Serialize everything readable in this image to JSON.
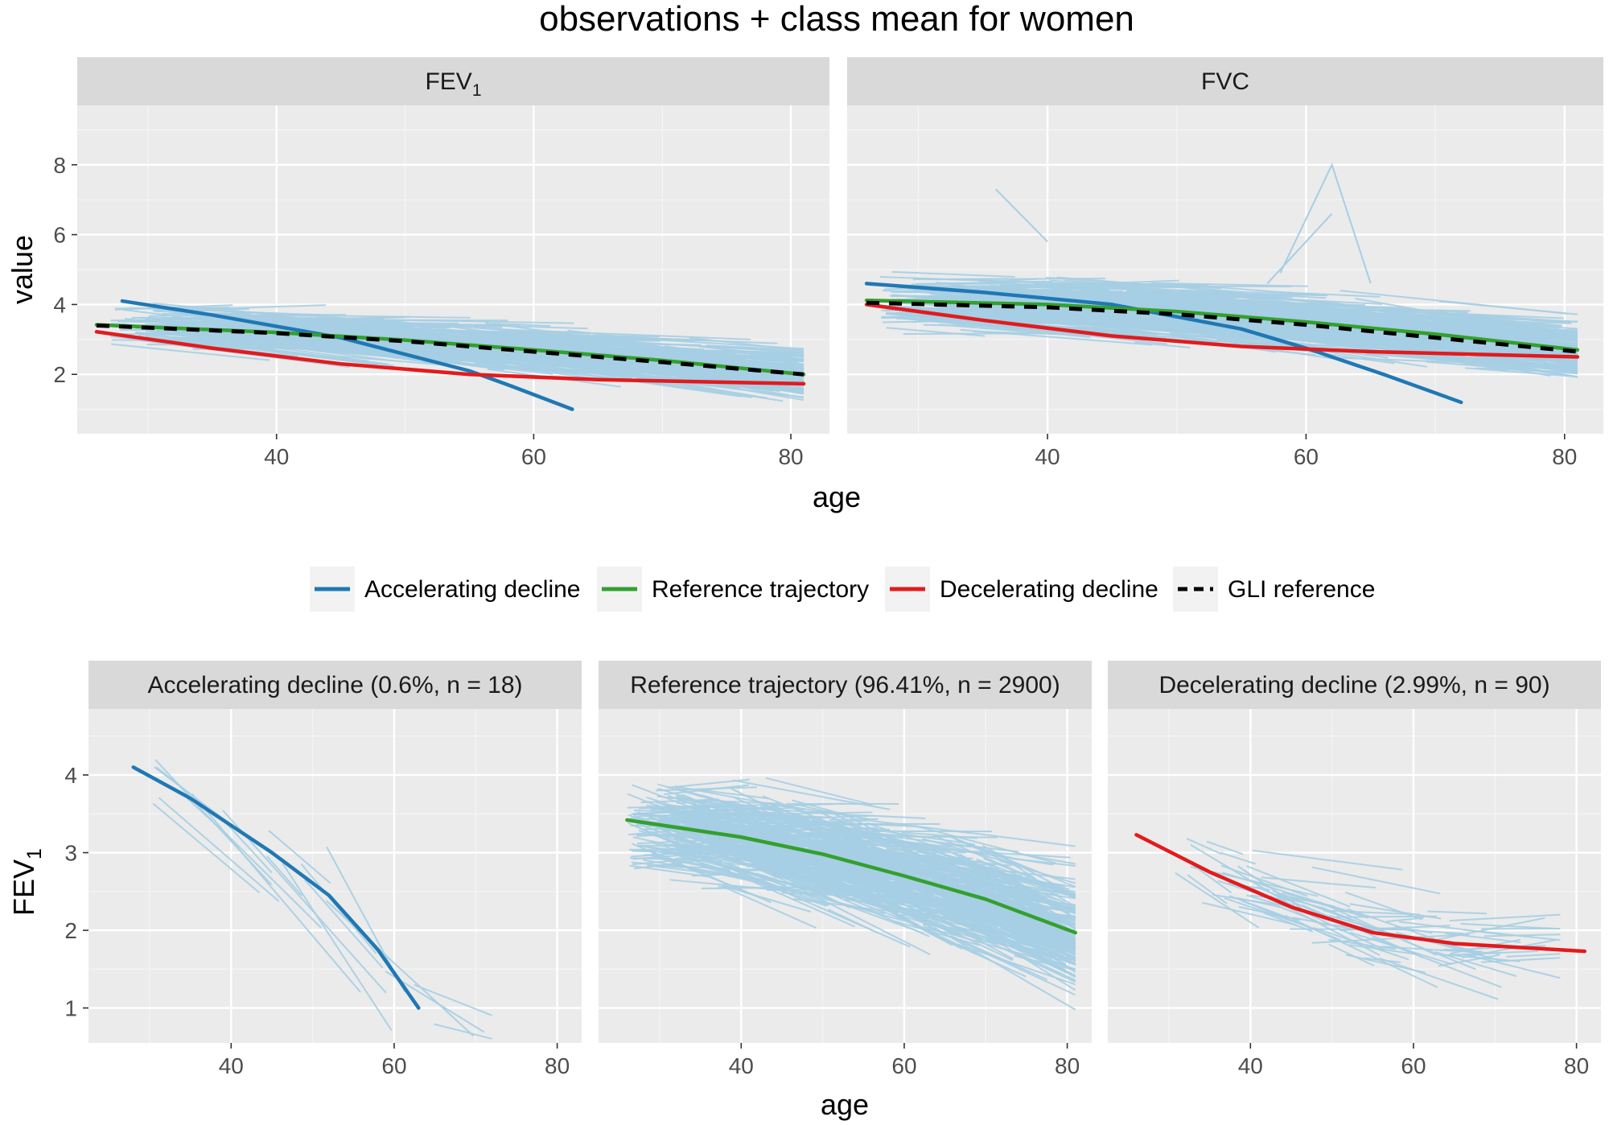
{
  "title": "observations + class mean for women",
  "colors": {
    "accelerating": "#1f78b4",
    "reference": "#33a02c",
    "decelerating": "#e31a1c",
    "gli": "#000000",
    "observations": "#a6cee3",
    "panel_bg": "#ebebeb",
    "strip_bg": "#d9d9d9"
  },
  "legend": {
    "items": [
      {
        "key": "accelerating",
        "label": "Accelerating decline"
      },
      {
        "key": "reference",
        "label": "Reference trajectory"
      },
      {
        "key": "decelerating",
        "label": "Decelerating decline"
      },
      {
        "key": "gli",
        "label": "GLI reference"
      }
    ]
  },
  "top": {
    "ylabel": "value",
    "xlabel": "age",
    "ylim": [
      0.3,
      9.7
    ],
    "yticks": [
      2,
      4,
      6,
      8
    ],
    "xlim": [
      24.5,
      83
    ],
    "xticks": [
      40,
      60,
      80
    ],
    "strips": [
      {
        "label": "FEV",
        "sub": "1"
      },
      {
        "label": "FVC",
        "sub": ""
      }
    ]
  },
  "bottom": {
    "ylabel": "FEV",
    "ylabel_sub": "1",
    "xlabel": "age",
    "ylim": [
      0.55,
      4.85
    ],
    "yticks": [
      1,
      2,
      3,
      4
    ],
    "xlim": [
      22.5,
      83
    ],
    "xticks": [
      40,
      60,
      80
    ],
    "strips": [
      "Accelerating decline (0.6%, n = 18)",
      "Reference trajectory (96.41%, n = 2900)",
      "Decelerating decline (2.99%, n = 90)"
    ]
  },
  "chart_data": [
    {
      "type": "line",
      "title": "observations + class mean for women — FEV1",
      "xlabel": "age",
      "ylabel": "value",
      "series": [
        {
          "name": "Accelerating decline",
          "x": [
            28,
            35,
            45,
            55,
            58,
            63
          ],
          "y": [
            4.1,
            3.7,
            3.05,
            2.1,
            1.7,
            1.0
          ]
        },
        {
          "name": "Reference trajectory",
          "x": [
            26,
            40,
            50,
            60,
            70,
            81
          ],
          "y": [
            3.42,
            3.2,
            2.98,
            2.7,
            2.4,
            2.0
          ]
        },
        {
          "name": "Decelerating decline",
          "x": [
            26,
            35,
            45,
            55,
            65,
            81
          ],
          "y": [
            3.22,
            2.75,
            2.3,
            2.0,
            1.85,
            1.73
          ]
        },
        {
          "name": "GLI reference",
          "x": [
            26,
            40,
            50,
            60,
            70,
            81
          ],
          "y": [
            3.4,
            3.18,
            2.95,
            2.65,
            2.35,
            2.0
          ]
        }
      ]
    },
    {
      "type": "line",
      "title": "observations + class mean for women — FVC",
      "xlabel": "age",
      "ylabel": "value",
      "series": [
        {
          "name": "Accelerating decline",
          "x": [
            26,
            35,
            45,
            55,
            60,
            66,
            72
          ],
          "y": [
            4.6,
            4.35,
            4.0,
            3.3,
            2.75,
            2.0,
            1.2
          ]
        },
        {
          "name": "Reference trajectory",
          "x": [
            26,
            40,
            50,
            60,
            70,
            81
          ],
          "y": [
            4.12,
            4.0,
            3.8,
            3.5,
            3.15,
            2.7
          ]
        },
        {
          "name": "Decelerating decline",
          "x": [
            26,
            35,
            45,
            55,
            65,
            81
          ],
          "y": [
            4.0,
            3.55,
            3.1,
            2.8,
            2.65,
            2.5
          ]
        },
        {
          "name": "GLI reference",
          "x": [
            26,
            40,
            50,
            60,
            70,
            81
          ],
          "y": [
            4.05,
            3.92,
            3.72,
            3.42,
            3.05,
            2.65
          ]
        }
      ]
    },
    {
      "type": "line",
      "title": "Accelerating decline (0.6%, n = 18)",
      "xlabel": "age",
      "ylabel": "FEV1",
      "series": [
        {
          "name": "Accelerating decline",
          "x": [
            28,
            35,
            45,
            52,
            58,
            63
          ],
          "y": [
            4.1,
            3.7,
            3.0,
            2.45,
            1.75,
            1.0
          ]
        }
      ]
    },
    {
      "type": "line",
      "title": "Reference trajectory (96.41%, n = 2900)",
      "xlabel": "age",
      "ylabel": "FEV1",
      "series": [
        {
          "name": "Reference trajectory",
          "x": [
            26,
            40,
            50,
            60,
            70,
            81
          ],
          "y": [
            3.42,
            3.2,
            2.98,
            2.7,
            2.4,
            1.97
          ]
        }
      ]
    },
    {
      "type": "line",
      "title": "Decelerating decline (2.99%, n = 90)",
      "xlabel": "age",
      "ylabel": "FEV1",
      "series": [
        {
          "name": "Decelerating decline",
          "x": [
            26,
            35,
            45,
            55,
            65,
            81
          ],
          "y": [
            3.23,
            2.75,
            2.3,
            1.97,
            1.83,
            1.73
          ]
        }
      ]
    }
  ]
}
